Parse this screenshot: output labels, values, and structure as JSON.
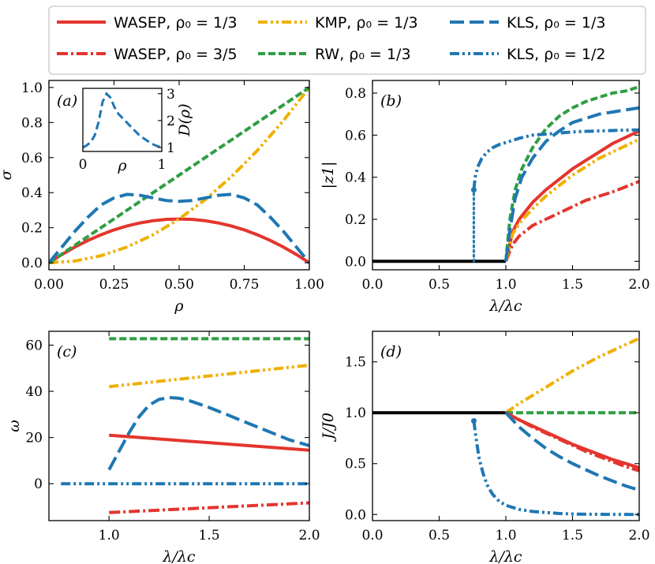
{
  "colors": {
    "wasep": "#e4352e",
    "kmp": "#f0b000",
    "rw": "#2f9e44",
    "kls": "#1f77b4",
    "black": "#000000"
  },
  "legend": [
    {
      "id": "wasep13",
      "label": "WASEP, ρ₀ = 1/3",
      "color": "wasep",
      "style": "solid"
    },
    {
      "id": "wasep35",
      "label": "WASEP, ρ₀ = 3/5",
      "color": "wasep",
      "style": "dashdot"
    },
    {
      "id": "kmp13",
      "label": "KMP, ρ₀ = 1/3",
      "color": "kmp",
      "style": "dashdotdot"
    },
    {
      "id": "rw13",
      "label": "RW, ρ₀ = 1/3",
      "color": "rw",
      "style": "dashed"
    },
    {
      "id": "kls13",
      "label": "KLS, ρ₀ = 1/3",
      "color": "kls",
      "style": "longdash"
    },
    {
      "id": "kls12",
      "label": "KLS, ρ₀ = 1/2",
      "color": "kls",
      "style": "dashdotdot"
    }
  ],
  "chart_data": [
    {
      "id": "a",
      "type": "line",
      "panel_label": "(a)",
      "xlabel": "ρ",
      "ylabel": "σ",
      "xlim": [
        0,
        1
      ],
      "ylim": [
        -0.04,
        1.04
      ],
      "xticks": [
        0,
        0.25,
        0.5,
        0.75,
        1
      ],
      "xticklabels": [
        "0.00",
        "0.25",
        "0.50",
        "0.75",
        "1.00"
      ],
      "yticks": [
        0,
        0.2,
        0.4,
        0.6,
        0.8,
        1.0
      ],
      "yticklabels": [
        "0.0",
        "0.2",
        "0.4",
        "0.6",
        "0.8",
        "1.0"
      ],
      "series": [
        {
          "name": "WASEP, ρ₀ = 1/3",
          "color": "wasep",
          "style": "solid",
          "x": [
            0,
            0.05,
            0.1,
            0.15,
            0.2,
            0.25,
            0.3,
            0.35,
            0.4,
            0.45,
            0.5,
            0.55,
            0.6,
            0.65,
            0.7,
            0.75,
            0.8,
            0.85,
            0.9,
            0.95,
            1
          ],
          "y": [
            0,
            0.0475,
            0.09,
            0.1275,
            0.16,
            0.1875,
            0.21,
            0.2275,
            0.24,
            0.2475,
            0.25,
            0.2475,
            0.24,
            0.2275,
            0.21,
            0.1875,
            0.16,
            0.1275,
            0.09,
            0.0475,
            0
          ]
        },
        {
          "name": "KMP, ρ₀ = 1/3",
          "color": "kmp",
          "style": "dashdotdot",
          "x": [
            0,
            0.1,
            0.2,
            0.3,
            0.4,
            0.5,
            0.6,
            0.7,
            0.8,
            0.9,
            1
          ],
          "y": [
            0,
            0.01,
            0.04,
            0.09,
            0.16,
            0.25,
            0.36,
            0.49,
            0.64,
            0.81,
            1
          ]
        },
        {
          "name": "RW, ρ₀ = 1/3",
          "color": "rw",
          "style": "dashed",
          "x": [
            0,
            1
          ],
          "y": [
            0,
            1
          ]
        },
        {
          "name": "KLS, ρ₀ = 1/3",
          "color": "kls",
          "style": "longdash",
          "x": [
            0,
            0.05,
            0.1,
            0.15,
            0.2,
            0.25,
            0.3,
            0.35,
            0.4,
            0.45,
            0.5,
            0.55,
            0.6,
            0.65,
            0.7,
            0.75,
            0.8,
            0.85,
            0.9,
            0.95,
            1
          ],
          "y": [
            0,
            0.09,
            0.18,
            0.26,
            0.33,
            0.37,
            0.39,
            0.385,
            0.37,
            0.355,
            0.35,
            0.355,
            0.37,
            0.385,
            0.39,
            0.37,
            0.33,
            0.26,
            0.18,
            0.09,
            0
          ]
        }
      ],
      "inset": {
        "xlabel": "ρ",
        "ylabel": "D(ρ)",
        "xlim": [
          0,
          1
        ],
        "ylim": [
          0.85,
          3.2
        ],
        "xticks": [
          0,
          1
        ],
        "xticklabels": [
          "0",
          "1"
        ],
        "yticks": [
          1,
          2,
          3
        ],
        "yticklabels": [
          "1",
          "2",
          "3"
        ],
        "series": [
          {
            "name": "D(ρ)",
            "color": "kls",
            "style": "longdash",
            "x": [
              0,
              0.05,
              0.1,
              0.15,
              0.2,
              0.25,
              0.3,
              0.35,
              0.4,
              0.45,
              0.5,
              0.55,
              0.6,
              0.65,
              0.7,
              0.75,
              0.8,
              0.85,
              0.9,
              0.95,
              1
            ],
            "y": [
              1.0,
              1.08,
              1.2,
              1.45,
              1.95,
              2.7,
              3.0,
              2.85,
              2.5,
              2.25,
              2.1,
              1.95,
              1.8,
              1.65,
              1.5,
              1.38,
              1.28,
              1.18,
              1.1,
              1.04,
              1.0
            ]
          }
        ]
      }
    },
    {
      "id": "b",
      "type": "line",
      "panel_label": "(b)",
      "xlabel": "λ/λc",
      "ylabel": "|z1|",
      "xlim": [
        0,
        2
      ],
      "ylim": [
        -0.04,
        0.86
      ],
      "xticks": [
        0,
        0.5,
        1,
        1.5,
        2
      ],
      "xticklabels": [
        "0.0",
        "0.5",
        "1.0",
        "1.5",
        "2.0"
      ],
      "yticks": [
        0,
        0.2,
        0.4,
        0.6,
        0.8
      ],
      "yticklabels": [
        "0.0",
        "0.2",
        "0.4",
        "0.6",
        "0.8"
      ],
      "series": [
        {
          "name": "zero branch",
          "color": "black",
          "style": "solid",
          "x": [
            0,
            1
          ],
          "y": [
            0,
            0
          ]
        },
        {
          "name": "WASEP, ρ₀ = 1/3",
          "color": "wasep",
          "style": "solid",
          "x": [
            1,
            1.05,
            1.1,
            1.2,
            1.3,
            1.4,
            1.5,
            1.6,
            1.7,
            1.8,
            1.9,
            2.0
          ],
          "y": [
            0,
            0.14,
            0.2,
            0.28,
            0.34,
            0.39,
            0.44,
            0.48,
            0.52,
            0.56,
            0.59,
            0.62
          ]
        },
        {
          "name": "WASEP, ρ₀ = 3/5",
          "color": "wasep",
          "style": "dashdot",
          "x": [
            1,
            1.05,
            1.1,
            1.2,
            1.3,
            1.4,
            1.5,
            1.6,
            1.7,
            1.8,
            1.9,
            2.0
          ],
          "y": [
            0,
            0.08,
            0.12,
            0.17,
            0.2,
            0.23,
            0.26,
            0.29,
            0.31,
            0.33,
            0.355,
            0.38
          ]
        },
        {
          "name": "KMP, ρ₀ = 1/3",
          "color": "kmp",
          "style": "dashdotdot",
          "x": [
            1,
            1.05,
            1.1,
            1.2,
            1.3,
            1.4,
            1.5,
            1.6,
            1.7,
            1.8,
            1.9,
            2.0
          ],
          "y": [
            0,
            0.13,
            0.18,
            0.25,
            0.31,
            0.36,
            0.41,
            0.45,
            0.49,
            0.52,
            0.55,
            0.58
          ]
        },
        {
          "name": "RW, ρ₀ = 1/3",
          "color": "rw",
          "style": "dashed",
          "x": [
            1,
            1.03,
            1.07,
            1.12,
            1.2,
            1.3,
            1.4,
            1.5,
            1.6,
            1.7,
            1.8,
            1.9,
            2.0
          ],
          "y": [
            0,
            0.2,
            0.34,
            0.44,
            0.54,
            0.63,
            0.69,
            0.73,
            0.76,
            0.78,
            0.8,
            0.81,
            0.83
          ]
        },
        {
          "name": "KLS, ρ₀ = 1/3",
          "color": "kls",
          "style": "longdash",
          "x": [
            1,
            1.03,
            1.07,
            1.12,
            1.2,
            1.3,
            1.4,
            1.5,
            1.6,
            1.7,
            1.8,
            1.9,
            2.0
          ],
          "y": [
            0,
            0.15,
            0.3,
            0.4,
            0.49,
            0.57,
            0.62,
            0.66,
            0.68,
            0.7,
            0.71,
            0.72,
            0.73
          ]
        },
        {
          "name": "KLS, ρ₀ = 1/2",
          "color": "kls",
          "style": "dashdotdot",
          "x": [
            0.76,
            0.77,
            0.79,
            0.82,
            0.86,
            0.9,
            0.95,
            1.0,
            1.1,
            1.2,
            1.3,
            1.4,
            1.5,
            1.6,
            1.7,
            1.8,
            1.9,
            2.0
          ],
          "y": [
            0.34,
            0.4,
            0.45,
            0.49,
            0.52,
            0.54,
            0.555,
            0.565,
            0.585,
            0.6,
            0.605,
            0.61,
            0.615,
            0.618,
            0.62,
            0.622,
            0.624,
            0.625
          ]
        },
        {
          "name": "KLS, ρ₀ = 1/2 vertical",
          "color": "kls",
          "style": "dotted",
          "x": [
            0.76,
            0.76
          ],
          "y": [
            0,
            0.34
          ]
        }
      ],
      "markers": [
        {
          "x": 0.76,
          "y": 0.34,
          "color": "kls"
        }
      ]
    },
    {
      "id": "c",
      "type": "line",
      "panel_label": "(c)",
      "xlabel": "λ/λc",
      "ylabel": "ω",
      "xlim": [
        0.7,
        2
      ],
      "ylim": [
        -16,
        66
      ],
      "xticks": [
        1,
        1.5,
        2
      ],
      "xticklabels": [
        "1.0",
        "1.5",
        "2.0"
      ],
      "yticks": [
        0,
        20,
        40,
        60
      ],
      "yticklabels": [
        "0",
        "20",
        "40",
        "60"
      ],
      "series": [
        {
          "name": "RW, ρ₀ = 1/3",
          "color": "rw",
          "style": "dashed",
          "x": [
            1,
            2
          ],
          "y": [
            62.8,
            62.8
          ]
        },
        {
          "name": "KMP, ρ₀ = 1/3",
          "color": "kmp",
          "style": "dashdotdot",
          "x": [
            1,
            2
          ],
          "y": [
            42,
            51.3
          ]
        },
        {
          "name": "KLS, ρ₀ = 1/3",
          "color": "kls",
          "style": "longdash",
          "x": [
            1,
            1.05,
            1.1,
            1.15,
            1.2,
            1.25,
            1.3,
            1.35,
            1.4,
            1.5,
            1.6,
            1.7,
            1.8,
            1.9,
            2.0
          ],
          "y": [
            6,
            14,
            22,
            29,
            34,
            36.5,
            37.3,
            37,
            36,
            33,
            29.5,
            26,
            22.5,
            19,
            16.5
          ]
        },
        {
          "name": "WASEP, ρ₀ = 1/3",
          "color": "wasep",
          "style": "solid",
          "x": [
            1,
            2
          ],
          "y": [
            21,
            14.5
          ]
        },
        {
          "name": "KLS, ρ₀ = 1/2",
          "color": "kls",
          "style": "dashdotdot",
          "x": [
            0.76,
            2
          ],
          "y": [
            0,
            0
          ]
        },
        {
          "name": "WASEP, ρ₀ = 3/5",
          "color": "wasep",
          "style": "dashdot",
          "x": [
            1,
            2
          ],
          "y": [
            -12.5,
            -8.3
          ]
        }
      ],
      "markers": []
    },
    {
      "id": "d",
      "type": "line",
      "panel_label": "(d)",
      "xlabel": "λ/λc",
      "ylabel": "J/J0",
      "xlim": [
        0,
        2
      ],
      "ylim": [
        -0.06,
        1.8
      ],
      "xticks": [
        0,
        0.5,
        1,
        1.5,
        2
      ],
      "xticklabels": [
        "0.0",
        "0.5",
        "1.0",
        "1.5",
        "2.0"
      ],
      "yticks": [
        0,
        0.5,
        1,
        1.5
      ],
      "yticklabels": [
        "0.0",
        "0.5",
        "1.0",
        "1.5"
      ],
      "series": [
        {
          "name": "flat branch",
          "color": "black",
          "style": "solid",
          "x": [
            0,
            1
          ],
          "y": [
            1,
            1
          ]
        },
        {
          "name": "KMP, ρ₀ = 1/3",
          "color": "kmp",
          "style": "dashdotdot",
          "x": [
            1,
            1.1,
            1.2,
            1.3,
            1.4,
            1.5,
            1.6,
            1.7,
            1.8,
            1.9,
            2.0
          ],
          "y": [
            1,
            1.09,
            1.17,
            1.25,
            1.33,
            1.41,
            1.48,
            1.55,
            1.61,
            1.67,
            1.73
          ]
        },
        {
          "name": "RW, ρ₀ = 1/3",
          "color": "rw",
          "style": "dashed",
          "x": [
            1,
            2
          ],
          "y": [
            1,
            1
          ]
        },
        {
          "name": "WASEP, ρ₀ = 3/5",
          "color": "wasep",
          "style": "dashdot",
          "x": [
            1,
            1.1,
            1.2,
            1.3,
            1.4,
            1.5,
            1.6,
            1.7,
            1.8,
            1.9,
            2.0
          ],
          "y": [
            1,
            0.93,
            0.86,
            0.8,
            0.74,
            0.68,
            0.62,
            0.57,
            0.52,
            0.47,
            0.43
          ]
        },
        {
          "name": "WASEP, ρ₀ = 1/3",
          "color": "wasep",
          "style": "solid",
          "x": [
            1,
            1.1,
            1.2,
            1.3,
            1.4,
            1.5,
            1.6,
            1.7,
            1.8,
            1.9,
            2.0
          ],
          "y": [
            1,
            0.93,
            0.87,
            0.81,
            0.75,
            0.69,
            0.64,
            0.59,
            0.54,
            0.5,
            0.46
          ]
        },
        {
          "name": "KLS, ρ₀ = 1/3",
          "color": "kls",
          "style": "longdash",
          "x": [
            1,
            1.1,
            1.2,
            1.3,
            1.4,
            1.5,
            1.6,
            1.7,
            1.8,
            1.9,
            2.0
          ],
          "y": [
            1,
            0.86,
            0.75,
            0.65,
            0.57,
            0.5,
            0.44,
            0.38,
            0.33,
            0.28,
            0.24
          ]
        },
        {
          "name": "KLS, ρ₀ = 1/2",
          "color": "kls",
          "style": "dashdotdot",
          "x": [
            0.76,
            0.78,
            0.8,
            0.83,
            0.86,
            0.9,
            0.95,
            1.0,
            1.1,
            1.2,
            1.3,
            1.4,
            1.5,
            1.6,
            1.8,
            2.0
          ],
          "y": [
            0.92,
            0.72,
            0.55,
            0.4,
            0.29,
            0.2,
            0.13,
            0.09,
            0.05,
            0.03,
            0.02,
            0.01,
            0.005,
            0.003,
            0.001,
            0
          ]
        }
      ],
      "markers": [
        {
          "x": 0.76,
          "y": 0.92,
          "color": "kls"
        }
      ]
    }
  ]
}
